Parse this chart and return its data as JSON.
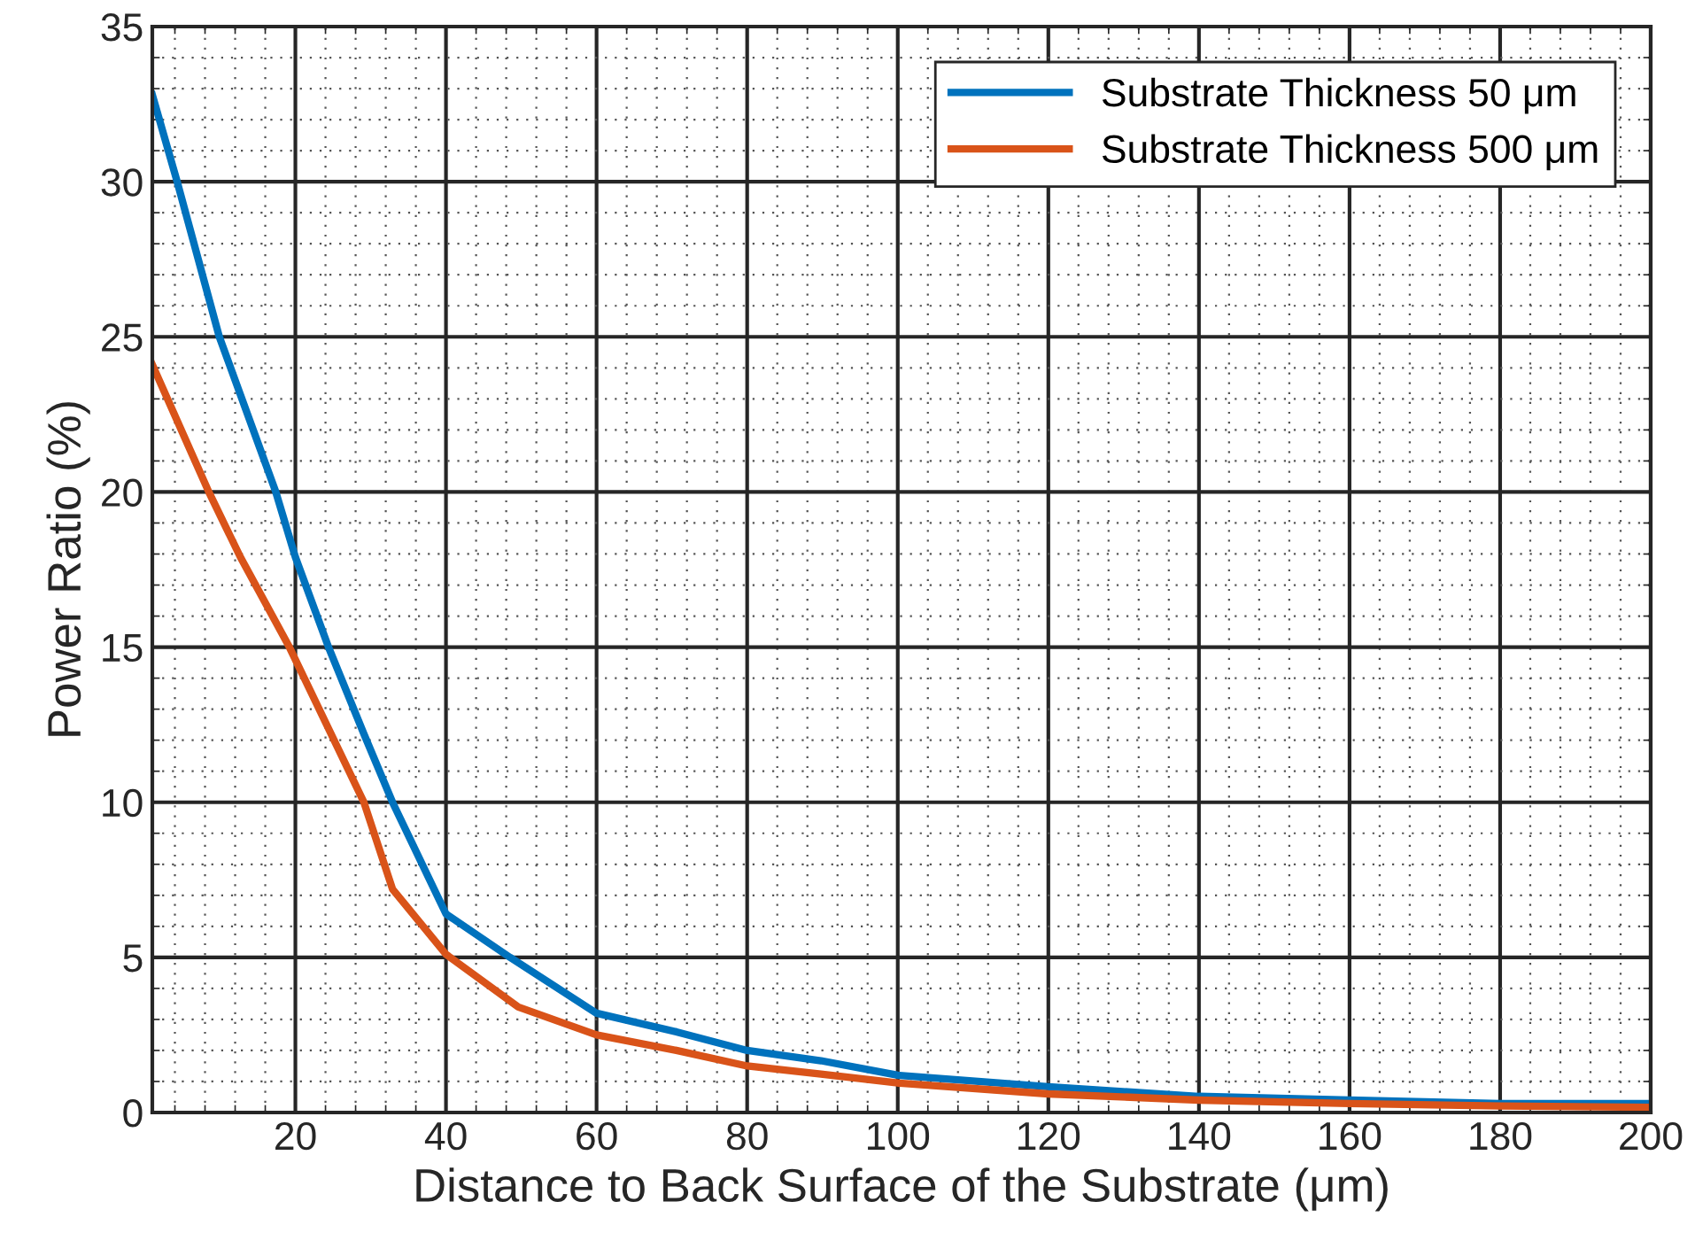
{
  "chart_data": {
    "type": "line",
    "xlabel": "Distance to Back Surface of the Substrate (μm)",
    "ylabel": "Power Ratio (%)",
    "xlim": [
      1,
      200
    ],
    "ylim": [
      0,
      35
    ],
    "xticks": [
      20,
      40,
      60,
      80,
      100,
      120,
      140,
      160,
      180,
      200
    ],
    "yticks": [
      0,
      5,
      10,
      15,
      20,
      25,
      30,
      35
    ],
    "grid": true,
    "legend": "top right",
    "line_style": "solid",
    "marker": "none",
    "series": [
      {
        "name": "Substrate Thickness 50 μm",
        "color": "#0072bd",
        "x": [
          1,
          4.3,
          9.9,
          17.4,
          20,
          24.4,
          29.1,
          32.9,
          40,
          48.5,
          60,
          70.6,
          80,
          89.8,
          100,
          120,
          140,
          160,
          180,
          200
        ],
        "values": [
          32.8,
          30,
          25,
          20,
          17.9,
          15,
          12.2,
          10,
          6.4,
          5,
          3.2,
          2.6,
          2.0,
          1.67,
          1.2,
          0.83,
          0.52,
          0.4,
          0.29,
          0.29
        ]
      },
      {
        "name": "Substrate Thickness 500 μm",
        "color": "#d95319",
        "x": [
          1,
          8.5,
          12.7,
          19.2,
          29.1,
          32.9,
          40,
          49.6,
          60,
          70.6,
          80,
          89.8,
          100,
          120,
          140,
          160,
          180,
          200
        ],
        "values": [
          24.1,
          20,
          17.9,
          15,
          10,
          7.2,
          5.1,
          3.4,
          2.5,
          2.0,
          1.5,
          1.24,
          0.95,
          0.6,
          0.4,
          0.29,
          0.21,
          0.17
        ]
      }
    ]
  }
}
